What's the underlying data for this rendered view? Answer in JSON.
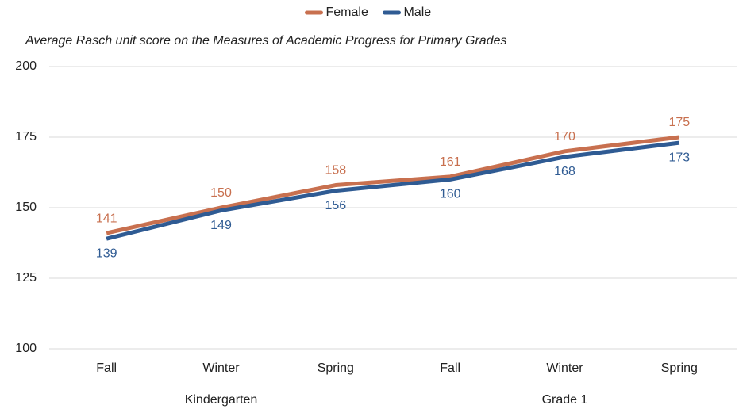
{
  "chart_data": {
    "type": "line",
    "subtitle": "Average Rasch unit score on the Measures of Academic Progress for Primary Grades",
    "groups": [
      {
        "name": "Kindergarten",
        "categories": [
          "Fall",
          "Winter",
          "Spring"
        ]
      },
      {
        "name": "Grade 1",
        "categories": [
          "Fall",
          "Winter",
          "Spring"
        ]
      }
    ],
    "series": [
      {
        "name": "Female",
        "color": "#c8704f",
        "values": [
          141,
          150,
          158,
          161,
          170,
          175
        ]
      },
      {
        "name": "Male",
        "color": "#2f5b93",
        "values": [
          139,
          149,
          156,
          160,
          168,
          173
        ]
      }
    ],
    "ylim": [
      100,
      200
    ],
    "yticks": [
      100,
      125,
      150,
      175,
      200
    ],
    "grid": true,
    "legend": "top"
  }
}
